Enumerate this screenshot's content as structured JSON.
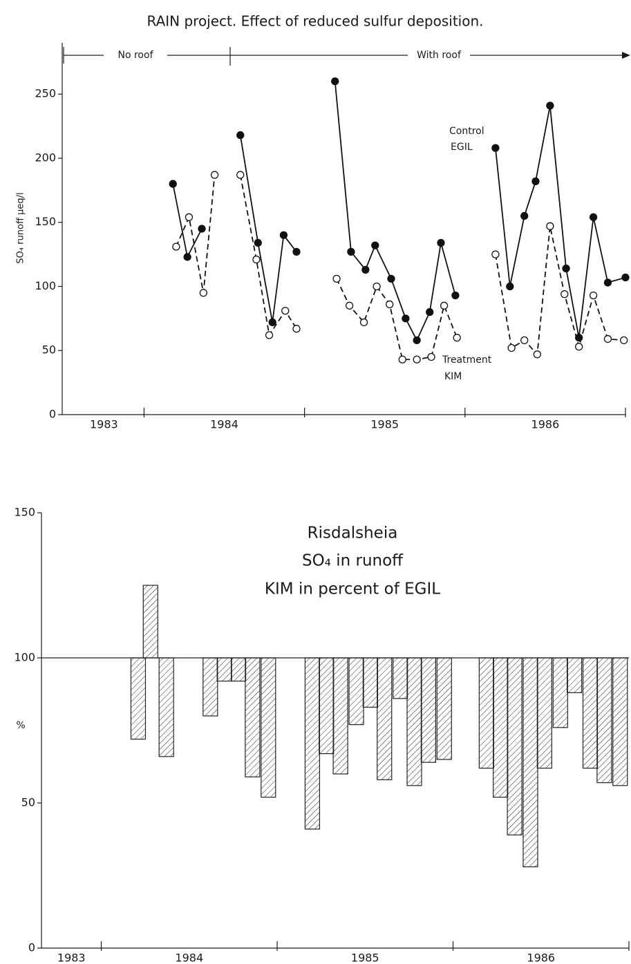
{
  "chart_data": [
    {
      "type": "line",
      "title": "RAIN project. Effect of reduced sulfur deposition.",
      "ylabel": "SO₄ runoff µeq/l",
      "periods": [
        "No roof",
        "With roof"
      ],
      "xlim": [
        1983.49,
        1987.0
      ],
      "ylim": [
        0,
        290
      ],
      "yticks": [
        0,
        50,
        100,
        150,
        200,
        250
      ],
      "xticks": [
        {
          "value": 1983.75,
          "label": "1983"
        },
        {
          "value": 1984.5,
          "label": "1984"
        },
        {
          "value": 1985.5,
          "label": "1985"
        },
        {
          "value": 1986.5,
          "label": "1986"
        }
      ],
      "xtick_marks": [
        1984,
        1985,
        1986,
        1987
      ],
      "series": [
        {
          "role": "Control",
          "name": "EGIL",
          "color": "#111111",
          "marker_fill": "#111111",
          "dashed": false,
          "x": [
            1984.18,
            1984.27,
            1984.36,
            null,
            1984.6,
            1984.71,
            1984.8,
            1984.87,
            1984.95,
            null,
            1985.19,
            1985.29,
            1985.38,
            1985.44,
            1985.54,
            1985.63,
            1985.7,
            1985.78,
            1985.85,
            1985.94,
            null,
            1986.19,
            1986.28,
            1986.37,
            1986.44,
            1986.53,
            1986.63,
            1986.71,
            1986.8,
            1986.89,
            1987.0
          ],
          "values": [
            180,
            123,
            145,
            null,
            218,
            134,
            72,
            140,
            127,
            null,
            260,
            127,
            113,
            132,
            106,
            75,
            58,
            80,
            134,
            93,
            null,
            208,
            100,
            155,
            182,
            241,
            114,
            60,
            154,
            103,
            107
          ]
        },
        {
          "role": "Treatment",
          "name": "KIM",
          "color": "#111111",
          "marker_fill": "#ffffff",
          "dashed": true,
          "x": [
            1984.2,
            1984.28,
            1984.37,
            1984.44,
            null,
            1984.6,
            1984.7,
            1984.78,
            1984.88,
            1984.95,
            null,
            1985.2,
            1985.28,
            1985.37,
            1985.45,
            1985.53,
            1985.61,
            1985.7,
            1985.79,
            1985.87,
            1985.95,
            null,
            1986.19,
            1986.29,
            1986.37,
            1986.45,
            1986.53,
            1986.62,
            1986.71,
            1986.8,
            1986.89,
            1986.99
          ],
          "values": [
            131,
            154,
            95,
            187,
            null,
            187,
            121,
            62,
            81,
            67,
            null,
            106,
            85,
            72,
            100,
            86,
            43,
            43,
            45,
            85,
            60,
            null,
            125,
            52,
            58,
            47,
            147,
            94,
            53,
            93,
            59,
            58
          ]
        }
      ]
    },
    {
      "type": "bar",
      "title": [
        "Risdalsheia",
        "SO₄ in runoff",
        "KIM in percent of EGIL"
      ],
      "ylabel": "%",
      "xlim": [
        1983.66,
        1987.0
      ],
      "ylim": [
        0,
        150
      ],
      "yticks": [
        0,
        50,
        100,
        150
      ],
      "reference_line": 100,
      "xticks": [
        {
          "value": 1983.83,
          "label": "1983"
        },
        {
          "value": 1984.5,
          "label": "1984"
        },
        {
          "value": 1985.5,
          "label": "1985"
        },
        {
          "value": 1986.5,
          "label": "1986"
        }
      ],
      "xtick_marks": [
        1984,
        1985,
        1986,
        1987
      ],
      "color": "#222222",
      "x": [
        1984.21,
        1984.28,
        1984.37,
        1984.62,
        1984.7,
        1984.78,
        1984.86,
        1984.95,
        1985.2,
        1985.28,
        1985.36,
        1985.45,
        1985.53,
        1985.61,
        1985.7,
        1985.78,
        1985.86,
        1985.95,
        1986.19,
        1986.27,
        1986.35,
        1986.44,
        1986.52,
        1986.61,
        1986.69,
        1986.78,
        1986.86,
        1986.95
      ],
      "values": [
        72,
        125,
        66,
        80,
        92,
        92,
        59,
        52,
        41,
        67,
        60,
        77,
        83,
        58,
        86,
        56,
        64,
        65,
        62,
        52,
        39,
        28,
        62,
        76,
        88,
        62,
        57,
        56
      ]
    }
  ]
}
